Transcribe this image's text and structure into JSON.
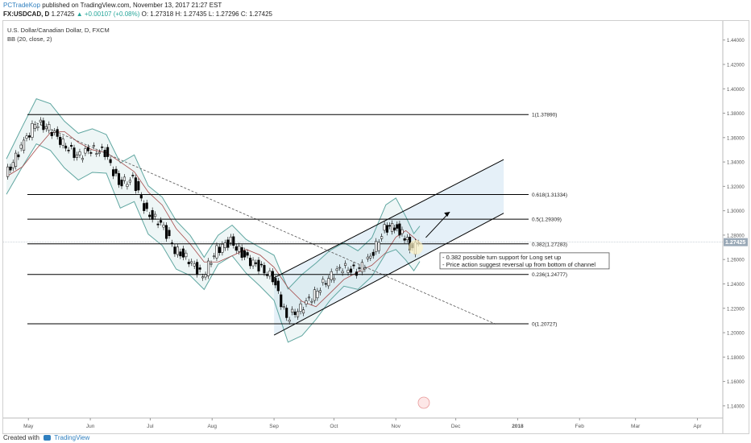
{
  "header": {
    "author": "PCTradeKop",
    "published": "published on TradingView.com, November 13, 2017 21:27 EST",
    "symbol": "FX:USDCAD, D",
    "last": "1.27425",
    "change": "▲ +0.00107 (+0.08%)",
    "open": "O: 1.27318",
    "high": "H: 1.27435",
    "low": "L: 1.27296",
    "close": "C: 1.27425"
  },
  "legend": {
    "line1": "U.S. Dollar/Canadian Dollar, D, FXCM",
    "line2": "BB (20, close, 2)"
  },
  "footer": {
    "created_with": "Created with",
    "brand": "TradingView"
  },
  "colors": {
    "up": "#26a69a",
    "down": "#ef5350",
    "candle_body_up": "#ffffff",
    "candle_body_down": "#000000",
    "bb_band": "#5fa6a0",
    "bb_basis": "#a64b4b",
    "channel_fill": "#cfe3f3",
    "price_tag": "#9aa9b7",
    "note_border": "#555555"
  },
  "chart_data": {
    "type": "candlestick",
    "x_ticks": [
      "May",
      "Jun",
      "Jul",
      "Aug",
      "Sep",
      "Oct",
      "Nov",
      "Dec",
      "2018",
      "Feb",
      "Mar",
      "Apr"
    ],
    "y_ticks": [
      1.14,
      1.16,
      1.18,
      1.2,
      1.22,
      1.24,
      1.26,
      1.28,
      1.3,
      1.32,
      1.34,
      1.36,
      1.38,
      1.4,
      1.42,
      1.44
    ],
    "ylim": [
      1.13,
      1.455
    ],
    "last_price_label": "1.27425",
    "last_price": 1.27425,
    "fib_levels": [
      {
        "label": "1(1.37890)",
        "value": 1.3789
      },
      {
        "label": "0.618(1.31334)",
        "value": 1.31334
      },
      {
        "label": "0.5(1.29309)",
        "value": 1.29309
      },
      {
        "label": "0.382(1.27283)",
        "value": 1.27283
      },
      {
        "label": "0.236(1.24777)",
        "value": 1.24777
      },
      {
        "label": "0(1.20727)",
        "value": 1.20727
      }
    ],
    "annotation_lines": [
      "- 0.382 possible turn support for Long set up",
      "- Price action suggest reversal up from bottom of channel"
    ],
    "price_path": [
      {
        "date": "2017-04-20",
        "close": 1.328
      },
      {
        "date": "2017-04-28",
        "close": 1.352
      },
      {
        "date": "2017-05-05",
        "close": 1.372
      },
      {
        "date": "2017-05-12",
        "close": 1.368
      },
      {
        "date": "2017-05-19",
        "close": 1.355
      },
      {
        "date": "2017-05-26",
        "close": 1.345
      },
      {
        "date": "2017-06-02",
        "close": 1.35
      },
      {
        "date": "2017-06-09",
        "close": 1.348
      },
      {
        "date": "2017-06-16",
        "close": 1.322
      },
      {
        "date": "2017-06-23",
        "close": 1.326
      },
      {
        "date": "2017-06-30",
        "close": 1.298
      },
      {
        "date": "2017-07-07",
        "close": 1.29
      },
      {
        "date": "2017-07-14",
        "close": 1.268
      },
      {
        "date": "2017-07-21",
        "close": 1.26
      },
      {
        "date": "2017-07-28",
        "close": 1.246
      },
      {
        "date": "2017-08-04",
        "close": 1.268
      },
      {
        "date": "2017-08-11",
        "close": 1.275
      },
      {
        "date": "2017-08-18",
        "close": 1.262
      },
      {
        "date": "2017-08-25",
        "close": 1.254
      },
      {
        "date": "2017-09-01",
        "close": 1.245
      },
      {
        "date": "2017-09-08",
        "close": 1.212
      },
      {
        "date": "2017-09-15",
        "close": 1.22
      },
      {
        "date": "2017-09-22",
        "close": 1.232
      },
      {
        "date": "2017-09-29",
        "close": 1.245
      },
      {
        "date": "2017-10-06",
        "close": 1.254
      },
      {
        "date": "2017-10-13",
        "close": 1.25
      },
      {
        "date": "2017-10-20",
        "close": 1.262
      },
      {
        "date": "2017-10-27",
        "close": 1.285
      },
      {
        "date": "2017-11-01",
        "close": 1.288
      },
      {
        "date": "2017-11-06",
        "close": 1.278
      },
      {
        "date": "2017-11-10",
        "close": 1.268
      },
      {
        "date": "2017-11-13",
        "close": 1.27425
      }
    ]
  }
}
